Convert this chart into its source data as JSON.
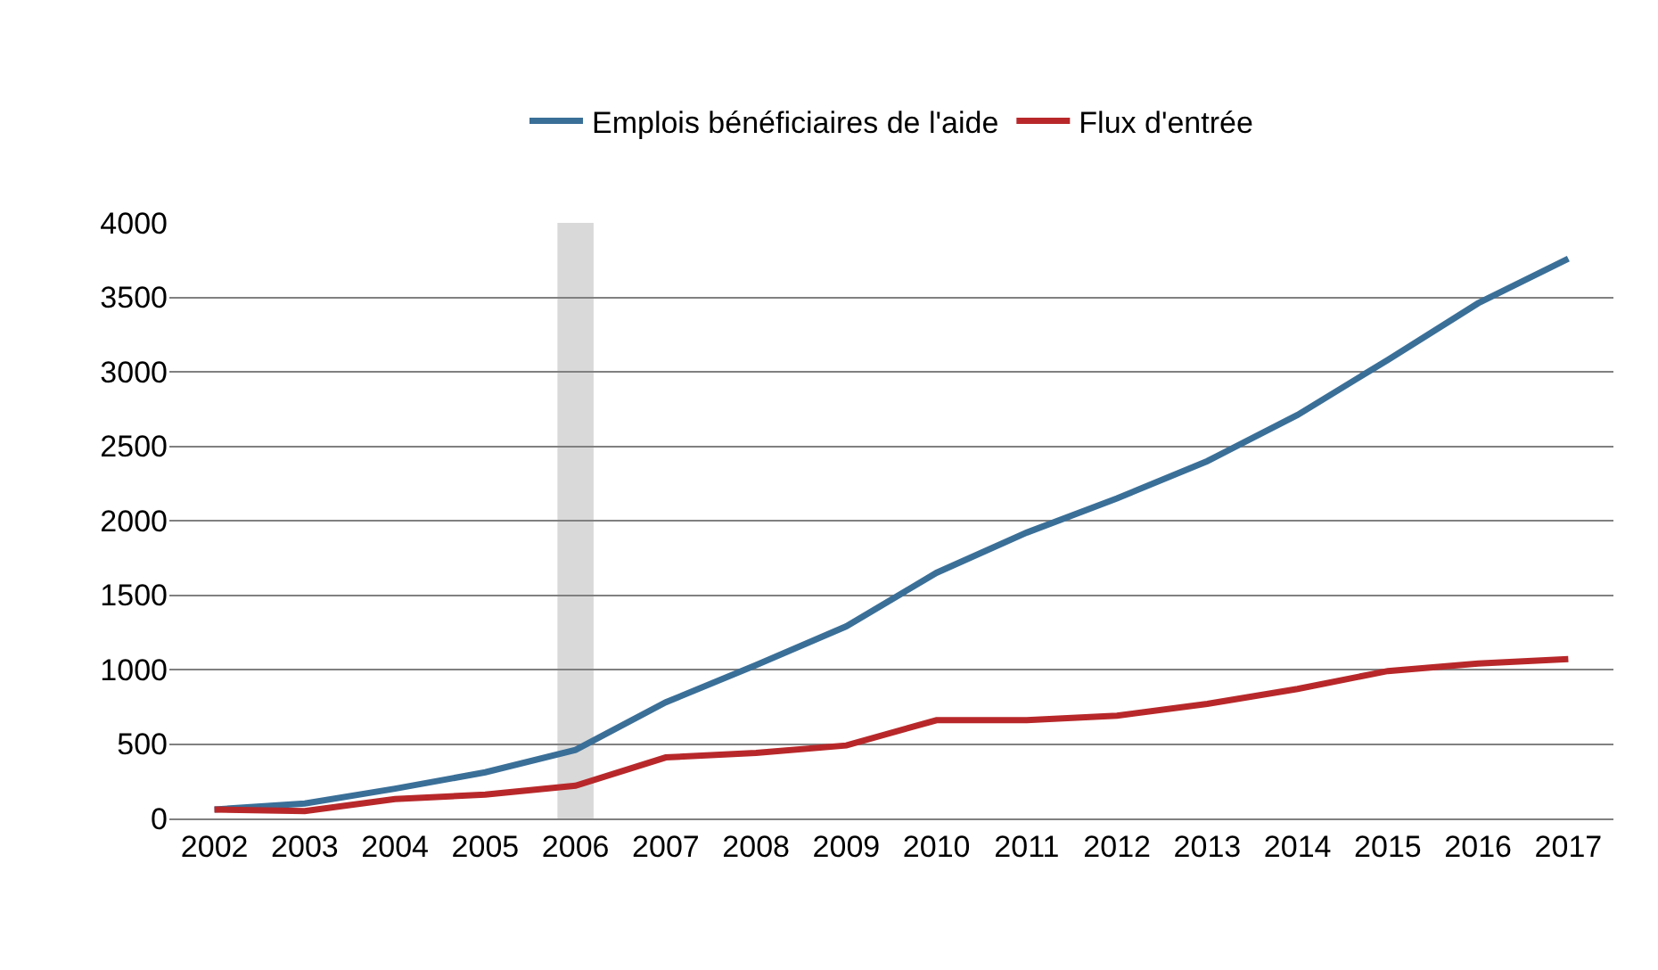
{
  "chart_data": {
    "type": "line",
    "x": [
      2002,
      2003,
      2004,
      2005,
      2006,
      2007,
      2008,
      2009,
      2010,
      2011,
      2012,
      2013,
      2014,
      2015,
      2016,
      2017
    ],
    "series": [
      {
        "name": "Emplois bénéficiaires de l'aide",
        "color": "#3a6f98",
        "values": [
          60,
          100,
          200,
          310,
          460,
          780,
          1030,
          1290,
          1650,
          1920,
          2150,
          2400,
          2710,
          3080,
          3460,
          3760
        ]
      },
      {
        "name": "Flux d'entrée",
        "color": "#b8282a",
        "values": [
          60,
          50,
          130,
          160,
          220,
          410,
          440,
          490,
          660,
          660,
          690,
          770,
          870,
          990,
          1040,
          1070
        ]
      }
    ],
    "xlim": [
      2001.5,
      2017.5
    ],
    "xticks": [
      2002,
      2003,
      2004,
      2005,
      2006,
      2007,
      2008,
      2009,
      2010,
      2011,
      2012,
      2013,
      2014,
      2015,
      2016,
      2017
    ],
    "ylim": [
      0,
      4000
    ],
    "yticks": [
      0,
      500,
      1000,
      1500,
      2000,
      2500,
      3000,
      3500,
      4000
    ],
    "bands": [
      {
        "axis": "x",
        "from": 2005.8,
        "to": 2006.2,
        "color": "#d9d9d9"
      }
    ],
    "grid": "y",
    "legend": "top",
    "marker": "none",
    "line_style": "solid"
  }
}
